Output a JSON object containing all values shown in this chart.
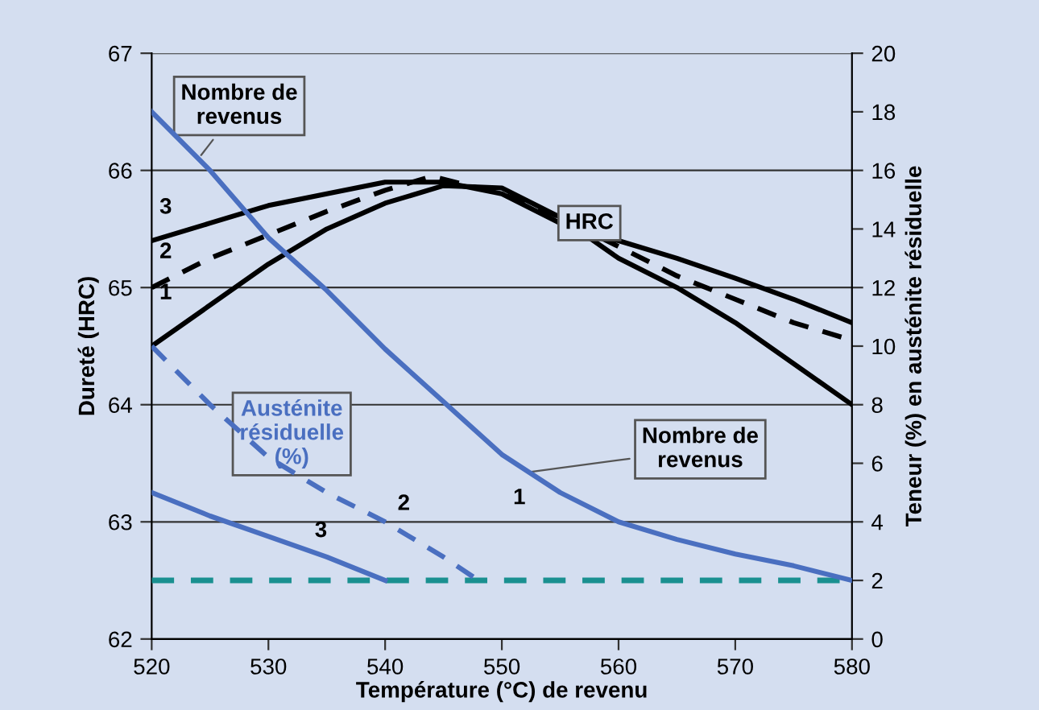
{
  "chart_data": {
    "type": "line",
    "xlabel": "Température (°C) de revenu",
    "ylabel": "Dureté (HRC)",
    "y2label": "Teneur (%) en austénite résiduelle",
    "xlim": [
      520,
      580
    ],
    "xticks": [
      520,
      530,
      540,
      550,
      560,
      570,
      580
    ],
    "ylim": [
      62,
      67
    ],
    "yticks": [
      62,
      63,
      64,
      65,
      66,
      67
    ],
    "y2lim": [
      0,
      20
    ],
    "y2ticks": [
      0,
      2,
      4,
      6,
      8,
      10,
      12,
      14,
      16,
      18,
      20
    ],
    "grid": "y",
    "legend": false,
    "marker": "none",
    "series": [
      {
        "color": "#000000",
        "line_style": "solid",
        "x": [
          520,
          525,
          530,
          535,
          540,
          545,
          550,
          555,
          560,
          565,
          570,
          575,
          580
        ],
        "values": [
          64.5,
          64.85,
          65.2,
          65.5,
          65.72,
          65.87,
          65.85,
          65.6,
          65.25,
          65.0,
          64.7,
          64.35,
          64.0
        ]
      },
      {
        "color": "#000000",
        "line_style": "dashed",
        "x": [
          520,
          525,
          530,
          535,
          540,
          544,
          550,
          555,
          560,
          565,
          570,
          575,
          580
        ],
        "values": [
          65.0,
          65.25,
          65.45,
          65.65,
          65.83,
          65.95,
          65.8,
          65.6,
          65.35,
          65.1,
          64.9,
          64.7,
          64.55
        ]
      },
      {
        "color": "#000000",
        "line_style": "solid",
        "x": [
          520,
          525,
          530,
          535,
          540,
          545,
          550,
          555,
          560,
          565,
          570,
          575,
          580
        ],
        "values": [
          65.4,
          65.55,
          65.7,
          65.8,
          65.9,
          65.9,
          65.8,
          65.55,
          65.4,
          65.25,
          65.08,
          64.9,
          64.7
        ]
      },
      {
        "color": "#4a6fc0",
        "line_style": "solid",
        "axis": "y2",
        "x": [
          520,
          525,
          530,
          535,
          540,
          545,
          550,
          555,
          560,
          565,
          570,
          575,
          580
        ],
        "values": [
          18.0,
          16.0,
          13.7,
          11.9,
          9.9,
          8.1,
          6.3,
          5.0,
          4.0,
          3.4,
          2.9,
          2.5,
          2.0
        ]
      },
      {
        "color": "#4a6fc0",
        "line_style": "dashed",
        "axis": "y2",
        "x": [
          520,
          525,
          530,
          535,
          540,
          545,
          548
        ],
        "values": [
          10.0,
          8.0,
          6.2,
          5.0,
          4.0,
          2.8,
          2.0
        ]
      },
      {
        "color": "#4a6fc0",
        "line_style": "solid",
        "axis": "y2",
        "x": [
          520,
          525,
          530,
          535,
          540
        ],
        "values": [
          5.0,
          4.2,
          3.5,
          2.8,
          2.0
        ]
      }
    ],
    "ref_lines": [
      {
        "axis": "y2",
        "value": 2,
        "color": "#1a9090",
        "line_style": "dashed"
      }
    ],
    "annotations": [
      {
        "text": "Nombre de\nrevenus",
        "x": 524,
        "y": 66.1
      },
      "HRC",
      "Austénite\nrésiduelle\n(%)",
      {
        "text": "Nombre de\nrevenus",
        "x": 552,
        "y": 63.42
      },
      "3",
      "2",
      "1",
      "1",
      "2",
      "3"
    ]
  }
}
